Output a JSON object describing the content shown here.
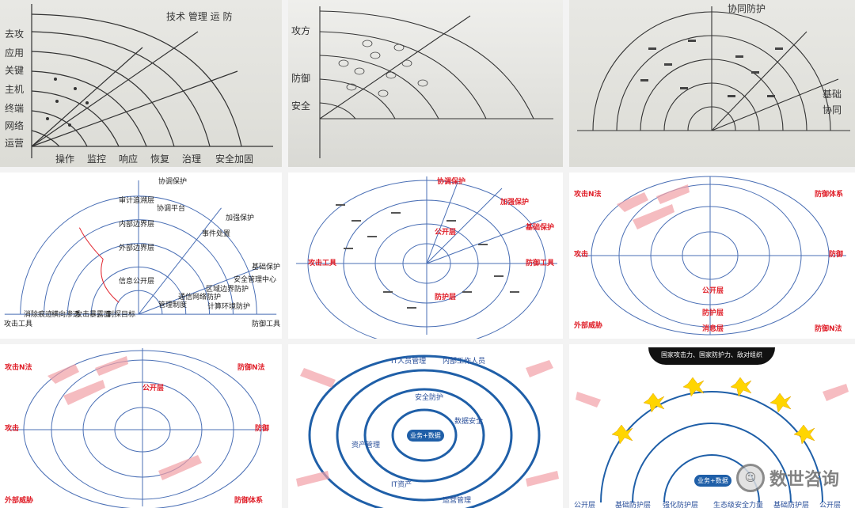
{
  "panels": {
    "p1": {
      "left_labels": [
        "去攻",
        "应用",
        "关键",
        "主机",
        "终端",
        "网络",
        "运营"
      ],
      "bottom_labels": [
        "操作",
        "监控",
        "响应",
        "恢复",
        "治理",
        "安全加固"
      ],
      "note": "技术 管理 运 防"
    },
    "p2": {
      "left_labels": [
        "攻方",
        "防御",
        "安全"
      ]
    },
    "p3": {
      "top_labels": [
        "协同防护"
      ],
      "right_labels": [
        "基础",
        "协同"
      ]
    },
    "p4": {
      "top_label": "协调保护",
      "labels": [
        "审计追溯层",
        "内部边界层",
        "外部边界层",
        "信息公开层",
        "加强保护",
        "基础保护",
        "协调平台",
        "事件处置"
      ],
      "axis_left": "攻击工具",
      "axis_right": "防御工具",
      "bottom_left": [
        "消除痕迹",
        "横向渗透",
        "攻击暴露面",
        "刺探目标"
      ],
      "bottom_right": [
        "管理制度",
        "通信网络防护",
        "区域边界防护",
        "计算环境防护",
        "安全管理中心"
      ]
    },
    "p5": {
      "labels": [
        "协调保护",
        "加强保护",
        "基础保护",
        "攻击工具",
        "防御工具",
        "公开层",
        "防护层"
      ]
    },
    "p6": {
      "labels": [
        "攻击N法",
        "防御体系",
        "攻击",
        "防御",
        "外部威胁",
        "防御N法",
        "公开层",
        "防护层",
        "消息层"
      ]
    },
    "p7": {
      "labels": [
        "攻击N法",
        "防御N法",
        "攻击",
        "防御",
        "外部威胁",
        "防御体系",
        "公开层"
      ]
    },
    "p8": {
      "core": "业务+数据",
      "ring_labels": [
        "IT人员管理",
        "内部工作人员",
        "安全防护",
        "数据安全",
        "资产管理",
        "IT资产",
        "运营管理"
      ]
    },
    "p9": {
      "banner": "国家攻击力、国家防护力、敌对组织",
      "core": "业务+数据",
      "bottom_labels": [
        "公开层",
        "基础防护层",
        "强化防护层",
        "生态级安全力量",
        "基础防护层",
        "公开层"
      ]
    }
  },
  "watermark": {
    "text": "数世咨询"
  },
  "colors": {
    "red": "#e0202a",
    "blue": "#2a4f9a",
    "line": "#4a6fb5",
    "yellow": "#ffd500"
  }
}
